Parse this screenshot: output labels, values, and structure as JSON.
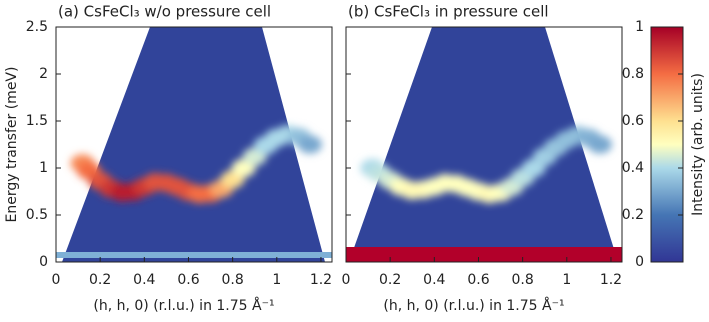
{
  "chart_data": [
    {
      "type": "dispersion",
      "title": "(a) CsFeCl₃ w/o pressure cell",
      "xlabel": "(h, h, 0) (r.l.u.) in 1.75 Å⁻¹",
      "ylabel": "Energy transfer (meV)",
      "x": [
        0.12,
        0.15,
        0.2,
        0.25,
        0.3,
        0.35,
        0.4,
        0.45,
        0.5,
        0.55,
        0.6,
        0.65,
        0.7,
        0.75,
        0.8,
        0.85,
        0.9,
        0.95,
        1.0,
        1.05,
        1.1,
        1.15
      ],
      "values": [
        1.05,
        0.97,
        0.86,
        0.78,
        0.74,
        0.75,
        0.8,
        0.85,
        0.84,
        0.8,
        0.75,
        0.72,
        0.73,
        0.78,
        0.88,
        1.0,
        1.12,
        1.24,
        1.32,
        1.36,
        1.33,
        1.25
      ],
      "intensity": [
        0.75,
        0.8,
        0.85,
        0.9,
        0.95,
        0.95,
        0.9,
        0.85,
        0.85,
        0.85,
        0.85,
        0.8,
        0.8,
        0.7,
        0.6,
        0.5,
        0.45,
        0.4,
        0.4,
        0.4,
        0.35,
        0.3
      ],
      "xlim": [
        0,
        1.25
      ],
      "xticks": [
        0,
        0.2,
        0.4,
        0.6,
        0.8,
        1,
        1.2
      ],
      "ylim": [
        0,
        2.5
      ],
      "yticks": [
        0,
        0.5,
        1,
        1.5,
        2,
        2.5
      ]
    },
    {
      "type": "dispersion",
      "title": "(b) CsFeCl₃ in pressure cell",
      "xlabel": "(h, h, 0) (r.l.u.) in 1.75 Å⁻¹",
      "x": [
        0.12,
        0.15,
        0.2,
        0.25,
        0.3,
        0.35,
        0.4,
        0.45,
        0.5,
        0.55,
        0.6,
        0.65,
        0.7,
        0.75,
        0.8,
        0.85,
        0.9,
        0.95,
        1.0,
        1.05,
        1.1,
        1.15
      ],
      "values": [
        1.0,
        0.95,
        0.87,
        0.8,
        0.76,
        0.77,
        0.8,
        0.84,
        0.83,
        0.79,
        0.75,
        0.72,
        0.74,
        0.8,
        0.9,
        1.0,
        1.12,
        1.22,
        1.3,
        1.35,
        1.32,
        1.25
      ],
      "intensity": [
        0.4,
        0.42,
        0.45,
        0.5,
        0.52,
        0.52,
        0.5,
        0.5,
        0.5,
        0.5,
        0.5,
        0.52,
        0.5,
        0.45,
        0.42,
        0.4,
        0.38,
        0.36,
        0.35,
        0.35,
        0.32,
        0.3
      ],
      "xlim": [
        0,
        1.25
      ],
      "xticks": [
        0,
        0.2,
        0.4,
        0.6,
        0.8,
        1,
        1.2
      ],
      "ylim": [
        0,
        2.5
      ],
      "yticks": [
        0,
        0.5,
        1,
        1.5,
        2,
        2.5
      ]
    }
  ],
  "colorbar": {
    "label": "Intensity (arb. units)",
    "lim": [
      0,
      1
    ],
    "ticks": [
      0,
      0.2,
      0.4,
      0.6,
      0.8,
      1
    ]
  }
}
